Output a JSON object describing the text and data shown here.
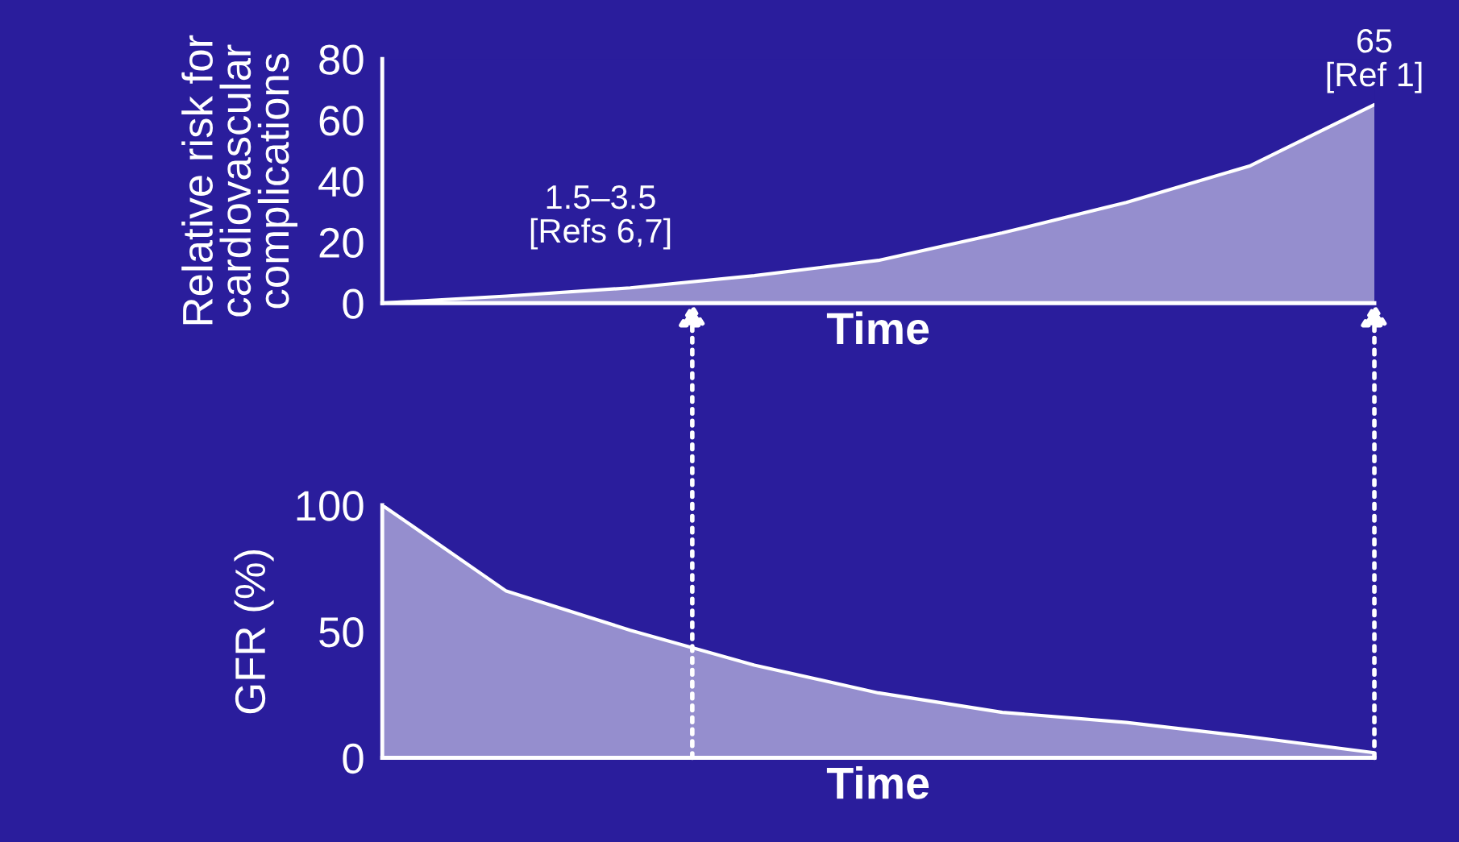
{
  "chart_data": [
    {
      "type": "area",
      "ylabel": "Relative risk for\ncardiovascular\ncomplications",
      "xlabel": "Time",
      "categories": [
        null,
        null,
        null,
        null,
        null,
        null,
        null,
        null,
        null
      ],
      "ylim": [
        0,
        80
      ],
      "yticks": [
        0,
        20,
        40,
        60,
        80
      ],
      "grid": false,
      "series": [
        {
          "color": "#ffffff",
          "values": [
            0,
            2.3,
            5,
            9,
            14,
            23,
            33,
            45,
            65
          ]
        }
      ],
      "annotations": [
        "1.5–3.5\n[Refs 6,7]",
        "65\n[Ref 1]"
      ]
    },
    {
      "type": "area",
      "ylabel": "GFR (%)",
      "xlabel": "Time",
      "categories": [
        null,
        null,
        null,
        null,
        null,
        null,
        null,
        null,
        null
      ],
      "ylim": [
        0,
        100
      ],
      "yticks": [
        0,
        50,
        100
      ],
      "grid": false,
      "series": [
        {
          "color": "#ffffff",
          "values": [
            100,
            66,
            50.5,
            36.7,
            25.7,
            18,
            14,
            8.3,
            2
          ]
        }
      ]
    }
  ]
}
